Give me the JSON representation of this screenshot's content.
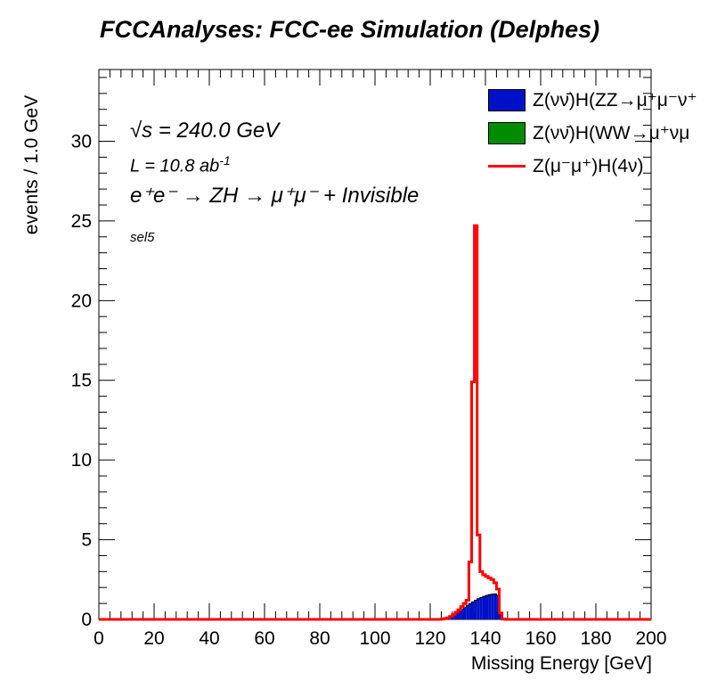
{
  "title": "FCCAnalyses: FCC-ee Simulation (Delphes)",
  "annotations": {
    "sqrts": "√s = 240.0 GeV",
    "lumi_prefix": "L = 10.8 ab",
    "lumi_sup": "-1",
    "process": "e⁺e⁻ → ZH → μ⁺μ⁻ + Invisible",
    "selection": "sel5"
  },
  "colors": {
    "znn_hzz": "#0010c8",
    "znn_hww": "#008c00",
    "zmumu_h4nu": "#ff0000"
  },
  "chart_data": {
    "type": "histogram",
    "title": "FCCAnalyses: FCC-ee Simulation (Delphes)",
    "xlabel": "Missing Energy [GeV]",
    "ylabel": "events / 1.0 GeV",
    "xlim": [
      0,
      200
    ],
    "ylim": [
      0,
      34.5
    ],
    "bin_width": 1.0,
    "x_ticks": [
      "0",
      "20",
      "40",
      "60",
      "80",
      "100",
      "120",
      "140",
      "160",
      "180",
      "200"
    ],
    "y_ticks": [
      "0",
      "5",
      "10",
      "15",
      "20",
      "25",
      "30"
    ],
    "legend_position": "top-right",
    "series": [
      {
        "name": "Z(νν̄)H(ZZ→μ⁺μ⁻ν⁺",
        "style": "filled",
        "bin_edges_start": 124,
        "values": [
          0.02,
          0.05,
          0.1,
          0.18,
          0.28,
          0.38,
          0.5,
          0.62,
          0.75,
          0.88,
          1.0,
          1.1,
          1.2,
          1.3,
          1.38,
          1.45,
          1.5,
          1.55,
          1.58,
          1.6,
          1.5,
          0.3,
          0.02
        ]
      },
      {
        "name": "Z(νν̄)H(WW→μ⁺νμ",
        "style": "filled",
        "bin_edges_start": 124,
        "values": [
          0,
          0,
          0,
          0,
          0,
          0,
          0,
          0,
          0,
          0,
          0,
          0,
          0,
          0,
          0,
          0,
          0,
          0,
          0,
          0,
          0,
          0,
          0
        ]
      },
      {
        "name": "Z(μ⁻μ⁺)H(4ν)",
        "style": "line",
        "bin_edges_start": 124,
        "values": [
          0.02,
          0.05,
          0.1,
          0.18,
          0.3,
          0.45,
          0.6,
          0.8,
          1.0,
          1.2,
          3.6,
          14.9,
          24.7,
          5.3,
          3.0,
          2.8,
          2.7,
          2.6,
          2.5,
          2.3,
          1.9,
          0.4,
          0.02
        ]
      }
    ]
  }
}
